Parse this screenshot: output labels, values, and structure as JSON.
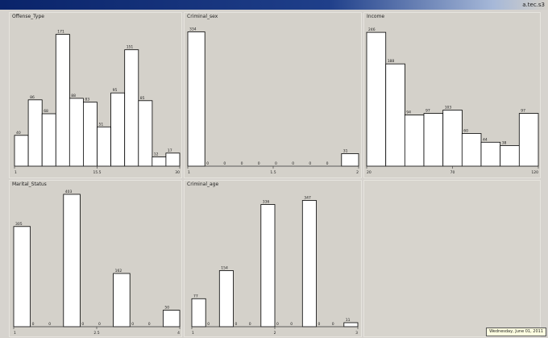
{
  "window": {
    "title_right": "a.tec.s3"
  },
  "status_bar": {
    "text": "Wednesday, June 01, 2011"
  },
  "colors": {
    "background": "#d6d3ce",
    "bar_fill": "#ffffff",
    "bar_stroke": "#000000"
  },
  "chart_data": [
    {
      "type": "bar",
      "title": "Offense_Type",
      "values": [
        40,
        86,
        68,
        171,
        88,
        83,
        51,
        95,
        151,
        85,
        12,
        17
      ],
      "labels": [
        "40",
        "86",
        "68",
        "171",
        "88",
        "83",
        "51",
        "95",
        "151",
        "85",
        "12",
        "17"
      ],
      "ticks": [
        "1",
        "15.5",
        "30"
      ],
      "ylim": [
        0,
        180
      ]
    },
    {
      "type": "bar",
      "title": "Criminal_sex",
      "values": [
        334,
        0,
        0,
        0,
        0,
        0,
        0,
        0,
        0,
        31
      ],
      "labels": [
        "334",
        "0",
        "0",
        "0",
        "0",
        "0",
        "0",
        "0",
        "0",
        "31"
      ],
      "ticks": [
        "1",
        "1.5",
        "2"
      ],
      "ylim": [
        0,
        345
      ]
    },
    {
      "type": "bar",
      "title": "Income",
      "values": [
        246,
        188,
        94,
        97,
        103,
        60,
        44,
        38,
        97
      ],
      "labels": [
        "246",
        "188",
        "94",
        "97",
        "103",
        "60",
        "44",
        "38",
        "97"
      ],
      "ticks": [
        "20",
        "70",
        "120"
      ],
      "ylim": [
        0,
        255
      ]
    },
    {
      "type": "bar",
      "title": "Marital_Status",
      "values": [
        305,
        0,
        0,
        403,
        0,
        0,
        162,
        0,
        0,
        50
      ],
      "labels": [
        "305",
        "0",
        "0",
        "403",
        "0",
        "0",
        "162",
        "0",
        "0",
        "50"
      ],
      "ticks": [
        "1",
        "2.5",
        "4"
      ],
      "ylim": [
        0,
        415
      ]
    },
    {
      "type": "bar",
      "title": "Criminal_age",
      "values": [
        77,
        0,
        154,
        0,
        0,
        336,
        0,
        0,
        347,
        0,
        0,
        11
      ],
      "labels": [
        "77",
        "0",
        "154",
        "0",
        "0",
        "336",
        "0",
        "0",
        "347",
        "0",
        "0",
        "11"
      ],
      "ticks": [
        "1",
        "2",
        "3"
      ],
      "ylim": [
        0,
        357
      ]
    }
  ]
}
